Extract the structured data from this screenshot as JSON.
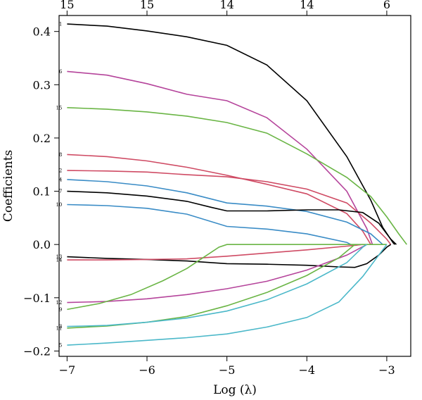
{
  "chart_data": {
    "type": "line",
    "xlabel": "Log (λ)",
    "ylabel": "Coefficients",
    "xlim": [
      -7.1,
      -2.7
    ],
    "ylim": [
      -0.21,
      0.43
    ],
    "x_ticks": [
      -7,
      -6,
      -5,
      -4,
      -3
    ],
    "x_tick_labels": [
      "−7",
      "−6",
      "−5",
      "−4",
      "−3"
    ],
    "y_ticks": [
      -0.2,
      -0.1,
      0.0,
      0.1,
      0.2,
      0.3,
      0.4
    ],
    "y_tick_labels": [
      "−0.2",
      "−0.1",
      "0.0",
      "0.1",
      "0.2",
      "0.3",
      "0.4"
    ],
    "top_ticks": [
      -7,
      -6,
      -5,
      -4,
      -3
    ],
    "top_tick_labels": [
      "15",
      "15",
      "14",
      "14",
      "6"
    ],
    "grid": false,
    "legend": "none",
    "series": [
      {
        "label": "1",
        "color": "#000000",
        "points": [
          [
            -7,
            0.414
          ],
          [
            -6.5,
            0.41
          ],
          [
            -6,
            0.401
          ],
          [
            -5.5,
            0.39
          ],
          [
            -5,
            0.374
          ],
          [
            -4.5,
            0.337
          ],
          [
            -4,
            0.27
          ],
          [
            -3.5,
            0.165
          ],
          [
            -3.2,
            0.083
          ],
          [
            -3.05,
            0.032
          ],
          [
            -2.92,
            0.003
          ],
          [
            -2.9,
            0
          ]
        ]
      },
      {
        "label": "6",
        "color": "#b5449b",
        "points": [
          [
            -7,
            0.325
          ],
          [
            -6.5,
            0.318
          ],
          [
            -6,
            0.302
          ],
          [
            -5.5,
            0.282
          ],
          [
            -5,
            0.27
          ],
          [
            -4.5,
            0.238
          ],
          [
            -4,
            0.179
          ],
          [
            -3.5,
            0.1
          ],
          [
            -3.25,
            0.03
          ],
          [
            -3.18,
            0
          ]
        ]
      },
      {
        "label": "15",
        "color": "#6ab545",
        "points": [
          [
            -7,
            0.257
          ],
          [
            -6.5,
            0.254
          ],
          [
            -6,
            0.249
          ],
          [
            -5.5,
            0.241
          ],
          [
            -5,
            0.229
          ],
          [
            -4.5,
            0.209
          ],
          [
            -4,
            0.17
          ],
          [
            -3.5,
            0.126
          ],
          [
            -3.2,
            0.09
          ],
          [
            -3,
            0.052
          ],
          [
            -2.85,
            0.02
          ],
          [
            -2.75,
            0
          ]
        ]
      },
      {
        "label": "8",
        "color": "#cf4b64",
        "points": [
          [
            -7,
            0.169
          ],
          [
            -6.5,
            0.165
          ],
          [
            -6,
            0.157
          ],
          [
            -5.5,
            0.145
          ],
          [
            -5,
            0.13
          ],
          [
            -4.5,
            0.113
          ],
          [
            -4,
            0.095
          ],
          [
            -3.5,
            0.058
          ],
          [
            -3.3,
            0.025
          ],
          [
            -3.2,
            0
          ]
        ]
      },
      {
        "label": "2",
        "color": "#cf4b64",
        "points": [
          [
            -7,
            0.139
          ],
          [
            -6.5,
            0.138
          ],
          [
            -6,
            0.136
          ],
          [
            -5.5,
            0.131
          ],
          [
            -5,
            0.127
          ],
          [
            -4.5,
            0.118
          ],
          [
            -4,
            0.104
          ],
          [
            -3.5,
            0.078
          ],
          [
            -3.2,
            0.04
          ],
          [
            -3.0,
            0.01
          ],
          [
            -2.95,
            0
          ]
        ]
      },
      {
        "label": "4",
        "color": "#3a8cc6",
        "points": [
          [
            -7,
            0.122
          ],
          [
            -6.5,
            0.118
          ],
          [
            -6,
            0.11
          ],
          [
            -5.5,
            0.097
          ],
          [
            -5,
            0.078
          ],
          [
            -4.5,
            0.072
          ],
          [
            -4,
            0.062
          ],
          [
            -3.5,
            0.042
          ],
          [
            -3.2,
            0.02
          ],
          [
            -3.05,
            0
          ]
        ]
      },
      {
        "label": "7",
        "color": "#000000",
        "points": [
          [
            -7,
            0.1
          ],
          [
            -6.5,
            0.097
          ],
          [
            -6,
            0.091
          ],
          [
            -5.5,
            0.081
          ],
          [
            -5.2,
            0.07
          ],
          [
            -5,
            0.063
          ],
          [
            -4.5,
            0.063
          ],
          [
            -4,
            0.065
          ],
          [
            -3.6,
            0.065
          ],
          [
            -3.3,
            0.06
          ],
          [
            -3.1,
            0.04
          ],
          [
            -2.95,
            0.01
          ],
          [
            -2.88,
            0
          ]
        ]
      },
      {
        "label": "10",
        "color": "#3a8cc6",
        "points": [
          [
            -7,
            0.075
          ],
          [
            -6.5,
            0.073
          ],
          [
            -6,
            0.068
          ],
          [
            -5.5,
            0.057
          ],
          [
            -5,
            0.034
          ],
          [
            -4.5,
            0.029
          ],
          [
            -4,
            0.02
          ],
          [
            -3.5,
            0.004
          ],
          [
            -3.45,
            0
          ]
        ]
      },
      {
        "label": "13",
        "color": "#000000",
        "points": [
          [
            -7,
            -0.023
          ],
          [
            -6.5,
            -0.026
          ],
          [
            -6,
            -0.028
          ],
          [
            -5.5,
            -0.031
          ],
          [
            -5,
            -0.036
          ],
          [
            -4.5,
            -0.037
          ],
          [
            -4,
            -0.039
          ],
          [
            -3.6,
            -0.042
          ],
          [
            -3.4,
            -0.043
          ],
          [
            -3.25,
            -0.036
          ],
          [
            -3.1,
            -0.02
          ],
          [
            -3.0,
            -0.005
          ],
          [
            -2.95,
            0
          ]
        ]
      },
      {
        "label": "14",
        "color": "#cf4b64",
        "points": [
          [
            -7,
            -0.029
          ],
          [
            -6.5,
            -0.029
          ],
          [
            -6,
            -0.028
          ],
          [
            -5.5,
            -0.027
          ],
          [
            -5,
            -0.022
          ],
          [
            -4.5,
            -0.016
          ],
          [
            -4,
            -0.01
          ],
          [
            -3.5,
            -0.003
          ],
          [
            -3.3,
            0
          ]
        ]
      },
      {
        "label": "12",
        "color": "#b5449b",
        "points": [
          [
            -7,
            -0.109
          ],
          [
            -6.5,
            -0.107
          ],
          [
            -6,
            -0.102
          ],
          [
            -5.5,
            -0.094
          ],
          [
            -5,
            -0.083
          ],
          [
            -4.5,
            -0.069
          ],
          [
            -4,
            -0.048
          ],
          [
            -3.5,
            -0.02
          ],
          [
            -3.25,
            0
          ]
        ]
      },
      {
        "label": "9",
        "color": "#6ab545",
        "points": [
          [
            -7,
            -0.122
          ],
          [
            -6.6,
            -0.111
          ],
          [
            -6.2,
            -0.094
          ],
          [
            -5.8,
            -0.068
          ],
          [
            -5.5,
            -0.045
          ],
          [
            -5.3,
            -0.025
          ],
          [
            -5.1,
            -0.005
          ],
          [
            -5.0,
            0
          ],
          [
            -4.5,
            0
          ],
          [
            -4,
            0
          ],
          [
            -3.5,
            0
          ],
          [
            -3,
            0
          ]
        ]
      },
      {
        "label": "11",
        "color": "#6ab545",
        "points": [
          [
            -7,
            -0.157
          ],
          [
            -6.5,
            -0.153
          ],
          [
            -6,
            -0.146
          ],
          [
            -5.5,
            -0.135
          ],
          [
            -5,
            -0.115
          ],
          [
            -4.5,
            -0.09
          ],
          [
            -4,
            -0.058
          ],
          [
            -3.6,
            -0.025
          ],
          [
            -3.4,
            0
          ]
        ]
      },
      {
        "label": "3",
        "color": "#4bb8c9",
        "points": [
          [
            -7,
            -0.154
          ],
          [
            -6.5,
            -0.152
          ],
          [
            -6,
            -0.146
          ],
          [
            -5.5,
            -0.138
          ],
          [
            -5,
            -0.125
          ],
          [
            -4.5,
            -0.104
          ],
          [
            -4,
            -0.074
          ],
          [
            -3.5,
            -0.034
          ],
          [
            -3.3,
            -0.005
          ],
          [
            -3.25,
            0
          ]
        ]
      },
      {
        "label": "5",
        "color": "#4bb8c9",
        "points": [
          [
            -7,
            -0.189
          ],
          [
            -6.5,
            -0.185
          ],
          [
            -6,
            -0.18
          ],
          [
            -5.5,
            -0.175
          ],
          [
            -5,
            -0.168
          ],
          [
            -4.5,
            -0.155
          ],
          [
            -4,
            -0.137
          ],
          [
            -3.6,
            -0.108
          ],
          [
            -3.3,
            -0.06
          ],
          [
            -3.1,
            -0.02
          ],
          [
            -3.0,
            0
          ]
        ]
      }
    ]
  }
}
